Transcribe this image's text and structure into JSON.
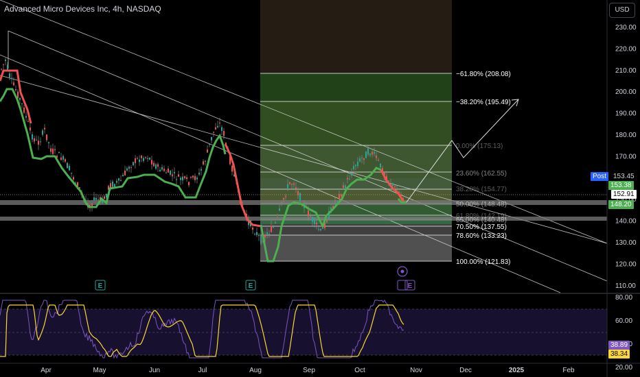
{
  "header": {
    "title": "Advanced Micro Devices Inc, 4h, NASDAQ",
    "currency_button": "USD"
  },
  "price_axis": {
    "ticks": [
      "230.00",
      "220.00",
      "210.00",
      "200.00",
      "190.00",
      "180.00",
      "170.00",
      "160.00",
      "150.00",
      "140.00",
      "130.00",
      "120.00",
      "110.00"
    ]
  },
  "rsi_axis": {
    "ticks": [
      "80.00",
      "60.00",
      "40.00",
      "20.00"
    ]
  },
  "time_axis": {
    "ticks": [
      "Apr",
      "May",
      "Jun",
      "Jul",
      "Aug",
      "Sep",
      "Oct",
      "Nov",
      "Dec",
      "2025",
      "Feb"
    ]
  },
  "price_tags": {
    "post_label": "Post",
    "post_value": "153.45",
    "green_upper": "153.38",
    "current": "152.91",
    "green_lower": "148.20",
    "rsi_value": "38.89",
    "rsi_ma": "38.34"
  },
  "fib_labels": [
    "−61.80% (208.08)",
    "−38.20% (195.49)",
    "0.00% (175.13)",
    "23.60% (162.55)",
    "38.20% (154.77)",
    "50.00% (148.48)",
    "61.80% (142.19)",
    "65.00% (140.48)",
    "70.50% (137.55)",
    "78.60% (133.23)",
    "100.00% (121.83)"
  ],
  "earnings_marker": "E",
  "colors": {
    "background": "#000000",
    "up_trend": "#4caf50",
    "down_trend": "#ef5350",
    "rsi_line": "#7e57c2",
    "rsi_ma": "#fdd835",
    "post_tag": "#2962ff",
    "current_tag": "#ffffff"
  }
}
